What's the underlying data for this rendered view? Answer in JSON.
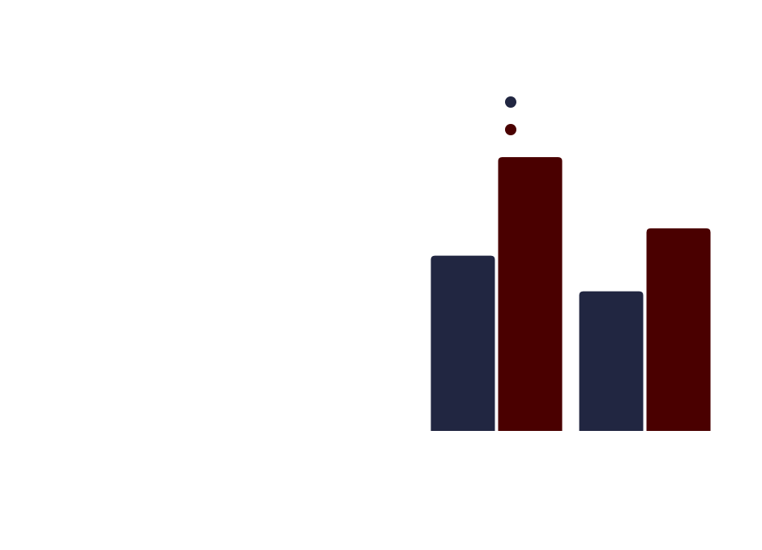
{
  "chart_data": {
    "type": "bar",
    "categories": [
      null,
      null
    ],
    "series": [
      {
        "color": "#212641",
        "values": [
          64,
          51
        ]
      },
      {
        "color": "#4a0000",
        "values": [
          100,
          74
        ]
      }
    ],
    "ylim": [
      0,
      100
    ],
    "grid": false
  }
}
